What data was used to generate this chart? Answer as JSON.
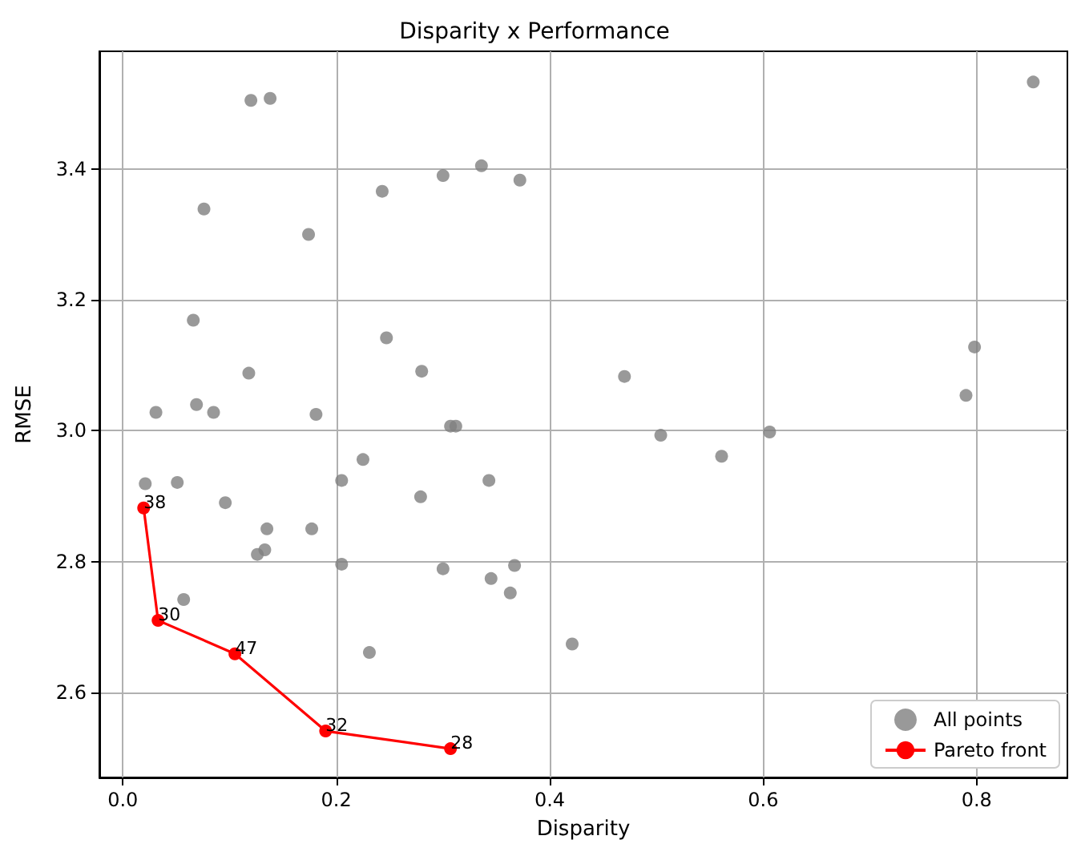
{
  "chart_data": {
    "type": "scatter",
    "title": "Disparity x Performance",
    "xlabel": "Disparity",
    "ylabel": "RMSE",
    "xlim": [
      -0.022,
      0.885
    ],
    "ylim": [
      2.47,
      3.58
    ],
    "xticks": [
      {
        "value": 0,
        "label": "0.0"
      },
      0.2,
      0.4,
      0.6,
      0.8
    ],
    "yticks": [
      2.6,
      2.8,
      {
        "value": 3,
        "label": "3.0"
      },
      3.2,
      3.4
    ],
    "grid": true,
    "legend": "bottom right",
    "marker": "circle",
    "series": [
      {
        "name": "All points",
        "type": "scatter",
        "color": "#808080",
        "x": [
          0.853,
          0.12,
          0.138,
          0.336,
          0.3,
          0.372,
          0.243,
          0.076,
          0.174,
          0.066,
          0.247,
          0.118,
          0.28,
          0.47,
          0.798,
          0.79,
          0.069,
          0.031,
          0.085,
          0.181,
          0.307,
          0.312,
          0.504,
          0.606,
          0.561,
          0.225,
          0.021,
          0.051,
          0.205,
          0.343,
          0.279,
          0.096,
          0.135,
          0.177,
          0.133,
          0.126,
          0.205,
          0.367,
          0.3,
          0.345,
          0.363,
          0.057,
          0.421,
          0.231
        ],
        "values": [
          3.533,
          3.505,
          3.508,
          3.405,
          3.39,
          3.383,
          3.366,
          3.339,
          3.3,
          3.169,
          3.142,
          3.088,
          3.091,
          3.083,
          3.128,
          3.054,
          3.04,
          3.028,
          3.028,
          3.025,
          3.007,
          3.007,
          2.993,
          2.998,
          2.961,
          2.956,
          2.919,
          2.921,
          2.924,
          2.924,
          2.899,
          2.89,
          2.85,
          2.85,
          2.818,
          2.811,
          2.796,
          2.794,
          2.789,
          2.774,
          2.752,
          2.742,
          2.674,
          2.661
        ]
      },
      {
        "name": "Pareto front",
        "type": "line",
        "color": "#ff0000",
        "line_style": "solid",
        "x": [
          0.0195,
          0.033,
          0.105,
          0.19,
          0.307
        ],
        "values": [
          2.882,
          2.71,
          2.659,
          2.541,
          2.514
        ]
      }
    ],
    "annotations": [
      {
        "text": "38",
        "x": 0.0195,
        "y": 2.882
      },
      {
        "text": "30",
        "x": 0.033,
        "y": 2.71
      },
      {
        "text": "47",
        "x": 0.105,
        "y": 2.659
      },
      {
        "text": "32",
        "x": 0.19,
        "y": 2.541
      },
      {
        "text": "28",
        "x": 0.307,
        "y": 2.514
      }
    ]
  }
}
